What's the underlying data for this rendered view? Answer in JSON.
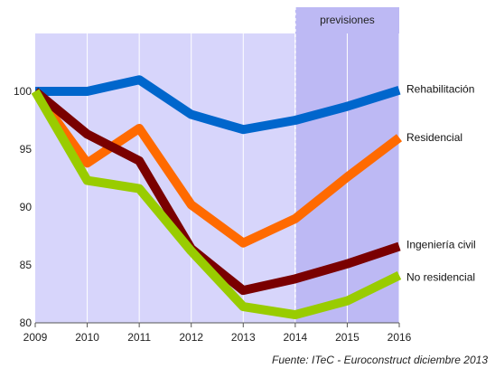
{
  "chart_data": {
    "type": "line",
    "x": [
      2009,
      2010,
      2011,
      2012,
      2013,
      2014,
      2015,
      2016
    ],
    "ylim": [
      80,
      105
    ],
    "yticks": [
      80,
      85,
      90,
      95,
      100
    ],
    "grid": "vertical",
    "forecast_band": {
      "from": 2014,
      "to": 2016,
      "label": "previsiones"
    },
    "series": [
      {
        "name": "Rehabilitación",
        "color": "#0066cc",
        "values": [
          100,
          100,
          101,
          98,
          96.7,
          97.5,
          98.7,
          100.1
        ]
      },
      {
        "name": "Residencial",
        "color": "#ff6a00",
        "values": [
          100,
          93.8,
          96.8,
          90.2,
          86.9,
          89,
          92.6,
          96
        ]
      },
      {
        "name": "Ingeniería civil",
        "color": "#7a0000",
        "values": [
          100,
          96.3,
          94,
          86.4,
          82.8,
          83.8,
          85.1,
          86.6
        ]
      },
      {
        "name": "No residencial",
        "color": "#99cc00",
        "values": [
          100,
          92.3,
          91.6,
          86.2,
          81.4,
          80.7,
          81.9,
          84.1
        ]
      }
    ],
    "source": "Fuente: ITeC - Euroconstruct diciembre 2013"
  },
  "colors": {
    "plot_background": "#d7d5fb",
    "forecast_background": "#bdb9f4",
    "gridline": "#ffffff",
    "axis": "#555555"
  }
}
